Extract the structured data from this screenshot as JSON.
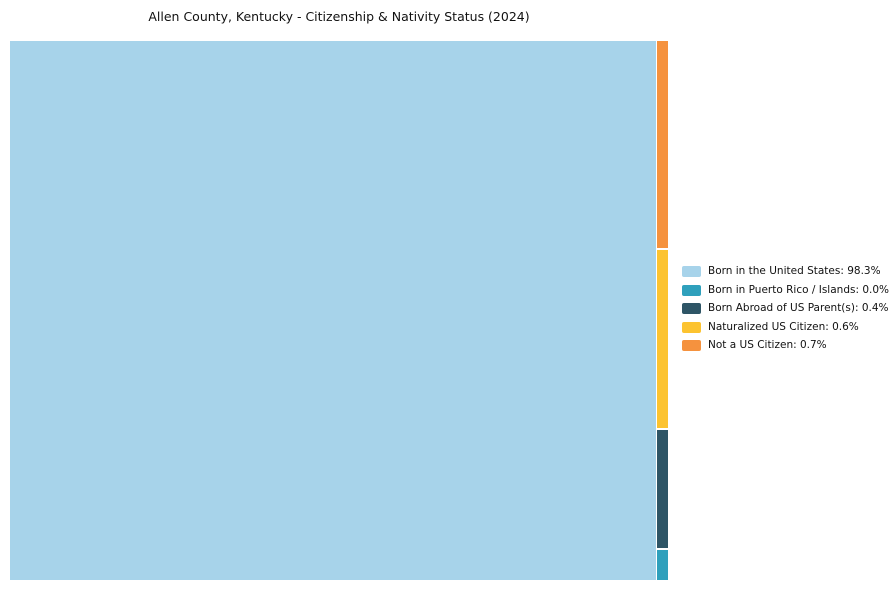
{
  "chart_data": {
    "type": "treemap",
    "title": "Allen County, Kentucky - Citizenship & Nativity Status (2024)",
    "categories": [
      "Born in the United States",
      "Born in Puerto Rico / Islands",
      "Born Abroad of US Parent(s)",
      "Naturalized US Citizen",
      "Not a US Citizen"
    ],
    "values": [
      98.3,
      0.0,
      0.4,
      0.6,
      0.7
    ],
    "colors": [
      "#A7D3EA",
      "#2FA0BC",
      "#2E5566",
      "#FCC330",
      "#F5923E"
    ],
    "legend_labels": [
      "Born in the United States: 98.3%",
      "Born in Puerto Rico / Islands: 0.0%",
      "Born Abroad of US Parent(s): 0.4%",
      "Naturalized US Citizen: 0.6%",
      "Not a US Citizen: 0.7%"
    ],
    "legend_position": "right",
    "layout_hint": "largest category fills left block; remaining categories stacked descending in thin right strip"
  }
}
